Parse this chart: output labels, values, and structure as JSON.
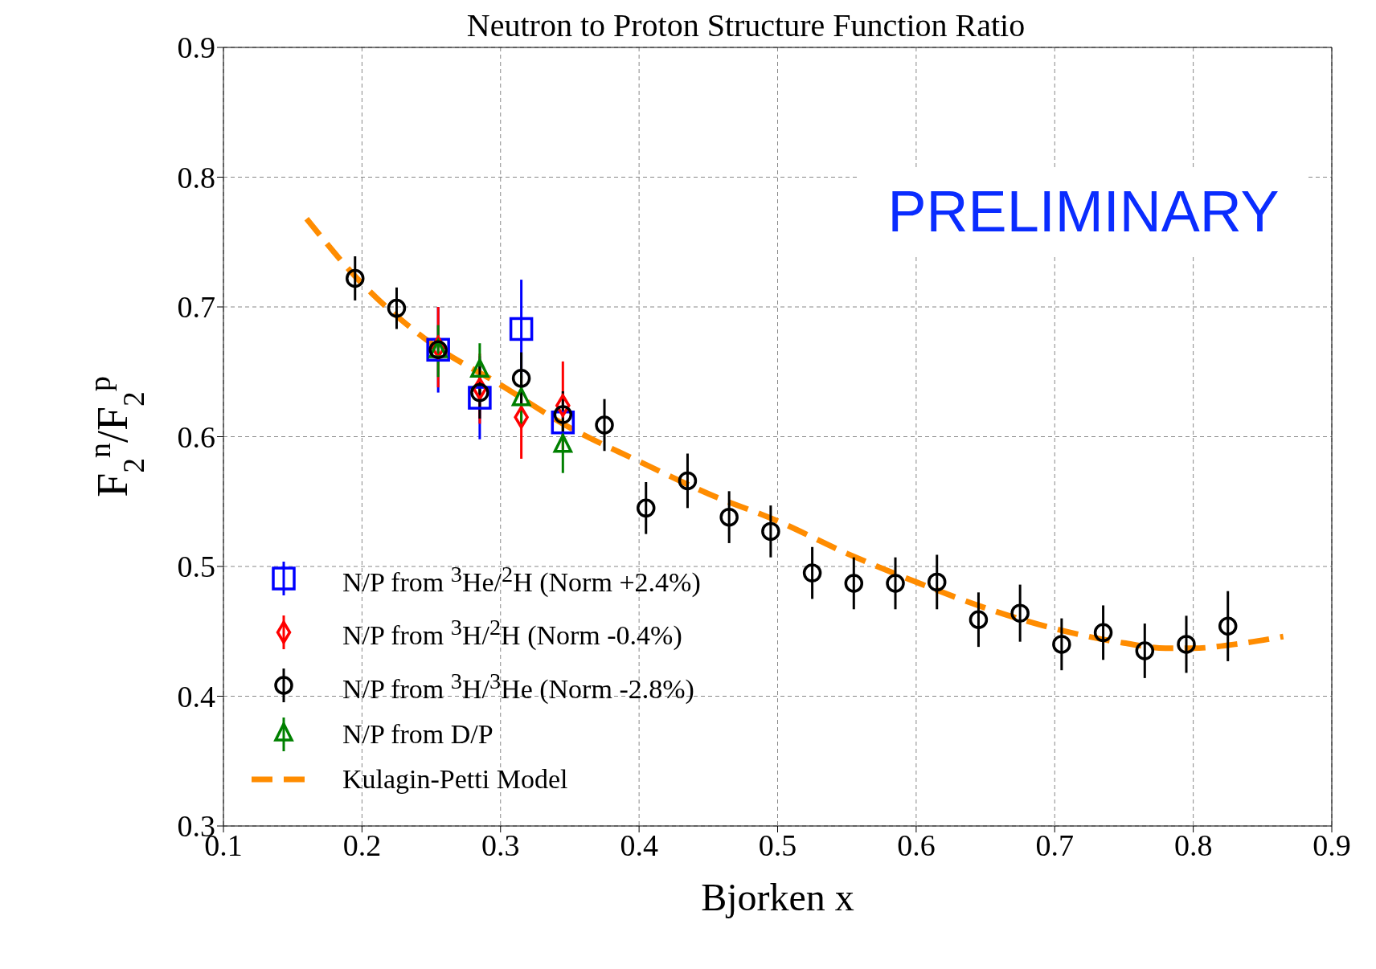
{
  "chart_data": {
    "type": "scatter",
    "title": "Neutron to Proton Structure Function Ratio",
    "xlabel": "Bjorken x",
    "ylabel": "F$_{2}$$^{n}$/F$_{2}$$^{p}$",
    "xlim": [
      0.1,
      0.9
    ],
    "xticks": [
      0.1,
      0.2,
      0.3,
      0.4,
      0.5,
      0.6,
      0.7,
      0.8,
      0.9
    ],
    "ylim": [
      0.3,
      0.9
    ],
    "yticks": [
      0.3,
      0.4,
      0.5,
      0.6,
      0.7,
      0.8,
      0.9
    ],
    "grid": true,
    "legend": "bottom left",
    "annotations": [
      "PRELIMINARY"
    ],
    "series": [
      {
        "name": "N/P from $^{3}$He/$^{2}$H (Norm +2.4%)",
        "color": "#0000ff",
        "marker": "square",
        "x": [
          0.255,
          0.285,
          0.315,
          0.345
        ],
        "values": [
          0.667,
          0.63,
          0.683,
          0.611
        ],
        "errors": [
          0.033,
          0.032,
          0.038,
          null
        ]
      },
      {
        "name": "N/P from $^{3}$H/$^{2}$H (Norm -0.4%)",
        "color": "#ff0000",
        "marker": "diamond",
        "x": [
          0.255,
          0.285,
          0.315,
          0.345
        ],
        "values": [
          0.669,
          0.637,
          0.615,
          0.624
        ],
        "errors": [
          0.031,
          0.027,
          0.032,
          0.034
        ]
      },
      {
        "name": "N/P from $^{3}$H/$^{3}$He (Norm -2.8%)",
        "color": "#000000",
        "marker": "circle",
        "x": [
          0.195,
          0.225,
          0.255,
          0.285,
          0.315,
          0.345,
          0.375,
          0.405,
          0.435,
          0.465,
          0.495,
          0.525,
          0.555,
          0.585,
          0.615,
          0.645,
          0.675,
          0.705,
          0.735,
          0.765,
          0.795,
          0.825
        ],
        "values": [
          0.722,
          0.699,
          0.667,
          0.634,
          0.645,
          0.617,
          0.609,
          0.545,
          0.566,
          0.538,
          0.527,
          0.495,
          0.487,
          0.487,
          0.488,
          0.459,
          0.464,
          0.44,
          0.449,
          0.435,
          0.44,
          0.454
        ],
        "errors": [
          0.017,
          0.016,
          null,
          0.02,
          0.02,
          0.018,
          0.02,
          0.02,
          0.021,
          0.02,
          0.02,
          0.02,
          0.02,
          0.02,
          0.021,
          0.021,
          0.022,
          0.02,
          0.021,
          0.021,
          0.022,
          0.027
        ]
      },
      {
        "name": "N/P from D/P",
        "color": "#008000",
        "marker": "triangle",
        "x": [
          0.255,
          0.285,
          0.315,
          0.345
        ],
        "values": [
          0.666,
          0.651,
          0.629,
          0.593
        ],
        "errors": [
          0.02,
          0.021,
          0.02,
          0.021
        ]
      },
      {
        "name": "Kulagin-Petti Model",
        "type": "line",
        "color": "#ff8c00",
        "marker": "none",
        "line_style": "dashed",
        "x": [
          0.16,
          0.2,
          0.25,
          0.3,
          0.35,
          0.4,
          0.45,
          0.5,
          0.55,
          0.6,
          0.65,
          0.7,
          0.75,
          0.78,
          0.8,
          0.83,
          0.865
        ],
        "values": [
          0.768,
          0.718,
          0.672,
          0.64,
          0.607,
          0.581,
          0.556,
          0.535,
          0.51,
          0.488,
          0.468,
          0.452,
          0.441,
          0.437,
          0.437,
          0.44,
          0.446
        ]
      }
    ]
  }
}
